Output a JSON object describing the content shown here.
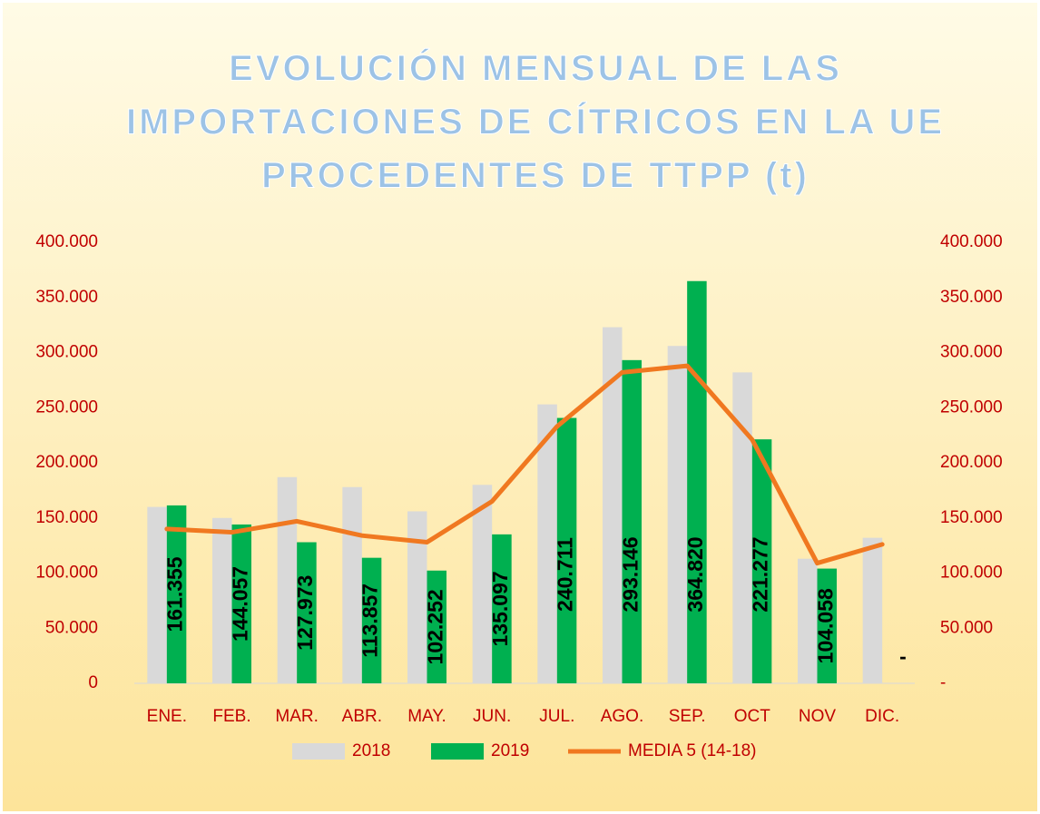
{
  "chart_data": {
    "type": "bar_line",
    "title": [
      "EVOLUCIÓN MENSUAL DE LAS",
      "IMPORTACIONES DE CÍTRICOS EN LA UE",
      "PROCEDENTES DE TTPP (t)"
    ],
    "categories": [
      "ENE.",
      "FEB.",
      "MAR.",
      "ABR.",
      "MAY.",
      "JUN.",
      "JUL.",
      "AGO.",
      "SEP.",
      "OCT",
      "NOV",
      "DIC."
    ],
    "series": [
      {
        "name": "2018",
        "type": "bar",
        "color": "#d9d9d9",
        "values": [
          160000,
          150000,
          187000,
          178000,
          156000,
          180000,
          253000,
          323000,
          306000,
          282000,
          113000,
          132000
        ]
      },
      {
        "name": "2019",
        "type": "bar",
        "color": "#00b050",
        "values": [
          161355,
          144057,
          127973,
          113857,
          102252,
          135097,
          240711,
          293146,
          364820,
          221277,
          104058,
          null
        ],
        "value_labels": [
          "161.355",
          "144.057",
          "127.973",
          "113.857",
          "102.252",
          "135.097",
          "240.711",
          "293.146",
          "364.820",
          "221.277",
          "104.058",
          "-"
        ]
      },
      {
        "name": "MEDIA 5 (14-18)",
        "type": "line",
        "axis": "y2",
        "color": "#f07820",
        "values": [
          140000,
          137000,
          147000,
          134000,
          128000,
          165000,
          233000,
          282000,
          288000,
          221000,
          109000,
          126000
        ]
      }
    ],
    "ylim": [
      0,
      400000
    ],
    "yticks": [
      0,
      {
        "value": 50000,
        "label": "50.000"
      },
      {
        "value": 100000,
        "label": "100.000"
      },
      {
        "value": 150000,
        "label": "150.000"
      },
      {
        "value": 200000,
        "label": "200.000"
      },
      {
        "value": 250000,
        "label": "250.000"
      },
      {
        "value": 300000,
        "label": "300.000"
      },
      {
        "value": 350000,
        "label": "350.000"
      },
      {
        "value": 400000,
        "label": "400.000"
      }
    ],
    "y2lim": [
      0,
      400000
    ],
    "y2ticks": [
      {
        "value": 0,
        "label": "-"
      },
      {
        "value": 50000,
        "label": "50.000"
      },
      {
        "value": 100000,
        "label": "100.000"
      },
      {
        "value": 150000,
        "label": "150.000"
      },
      {
        "value": 200000,
        "label": "200.000"
      },
      {
        "value": 250000,
        "label": "250.000"
      },
      {
        "value": 300000,
        "label": "300.000"
      },
      {
        "value": 350000,
        "label": "350.000"
      },
      {
        "value": 400000,
        "label": "400.000"
      }
    ],
    "legend": "bottom"
  }
}
